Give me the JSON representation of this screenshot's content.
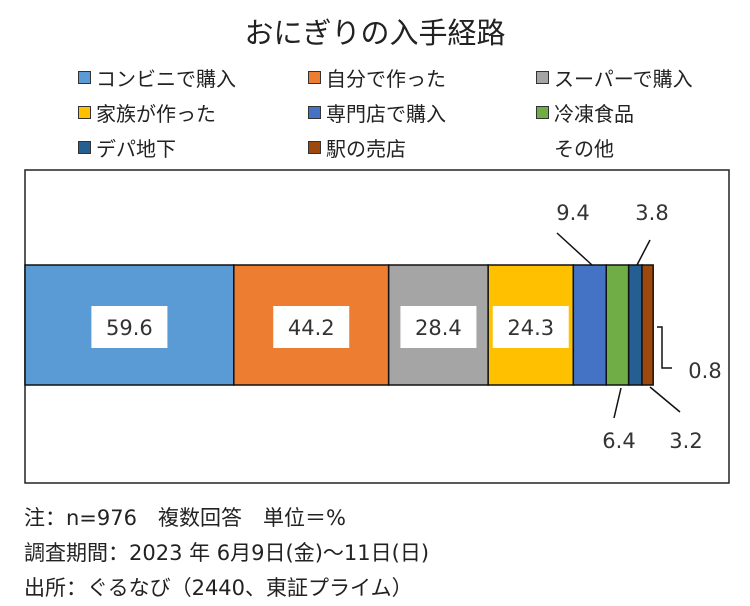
{
  "chart_data": {
    "type": "bar",
    "orientation": "horizontal-stacked",
    "title": "おにぎりの入手経路",
    "categories": [
      "コンビニで購入",
      "自分で作った",
      "スーパーで購入",
      "家族が作った",
      "専門店で購入",
      "冷凍食品",
      "デパ地下",
      "駅の売店",
      "その他"
    ],
    "values": [
      59.6,
      44.2,
      28.4,
      24.3,
      9.4,
      6.4,
      3.8,
      3.2,
      0.8
    ],
    "value_labels": [
      "59.6",
      "44.2",
      "28.4",
      "24.3",
      "9.4",
      "6.4",
      "3.8",
      "3.2",
      "0.8"
    ],
    "colors": [
      "#5B9BD5",
      "#ED7D31",
      "#A5A5A5",
      "#FFC000",
      "#4472C4",
      "#70AD47",
      "#255E91",
      "#9E480E",
      "#FFFFFF"
    ],
    "legend_position": "top",
    "xlabel": "",
    "ylabel": ""
  },
  "notes": [
    "注：n=976　複数回答　単位＝%",
    "調査期間：2023 年 6月9日(金)～11日(日)",
    "出所：ぐるなび（2440、東証プライム）"
  ]
}
